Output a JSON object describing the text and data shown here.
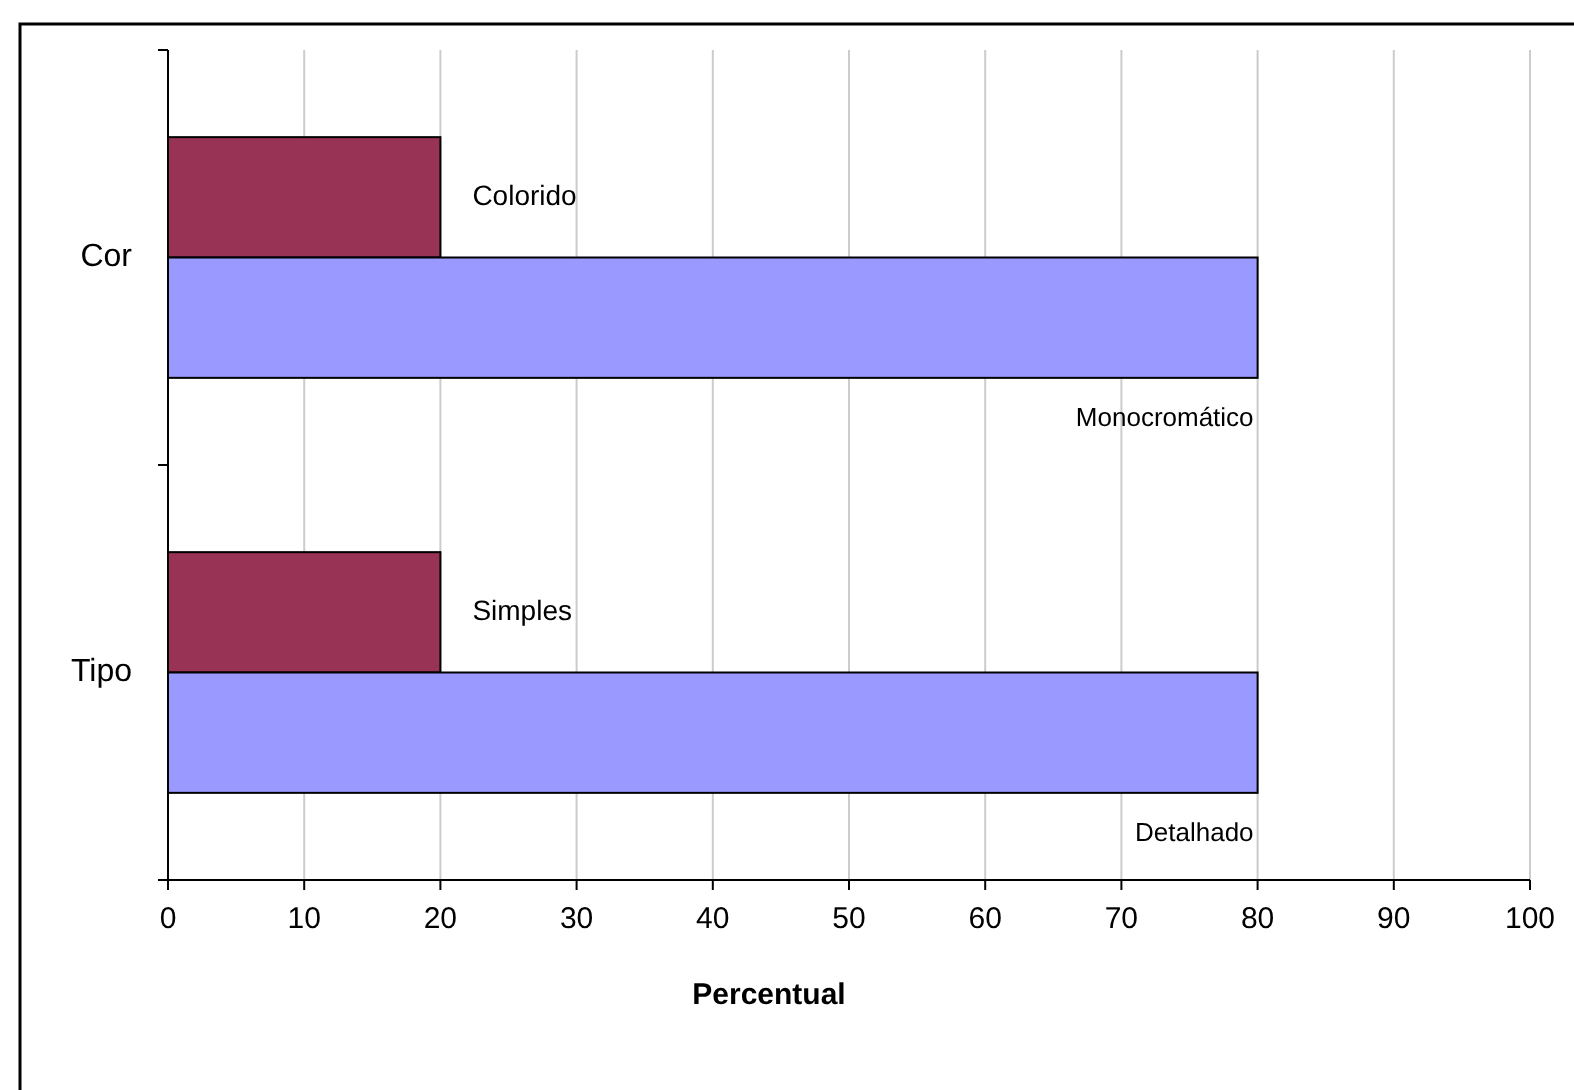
{
  "chart_data": {
    "type": "bar",
    "orientation": "horizontal",
    "categories": [
      "Cor",
      "Tipo"
    ],
    "series": [
      {
        "color": "#993355",
        "values": [
          20,
          20
        ]
      },
      {
        "color": "#9999ff",
        "values": [
          80,
          80
        ]
      }
    ],
    "xlim": [
      0,
      100
    ],
    "xticks": [
      0,
      10,
      20,
      30,
      40,
      50,
      60,
      70,
      80,
      90,
      100
    ],
    "xlabel": "Percentual",
    "grid": "x",
    "annotations": [
      "Colorido",
      "Monocromático",
      "Simples",
      "Detalhado"
    ]
  }
}
